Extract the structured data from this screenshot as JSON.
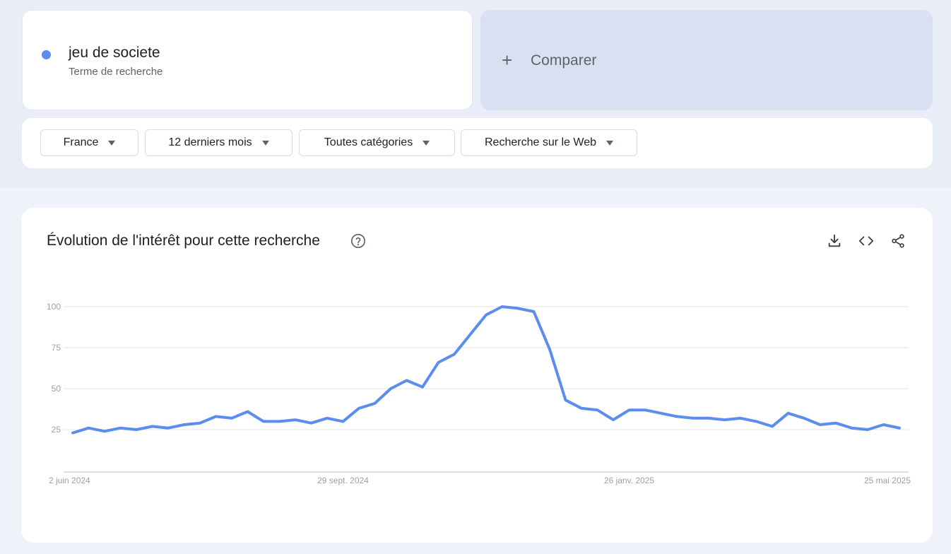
{
  "search_term": {
    "name": "jeu de societe",
    "subtitle": "Terme de recherche",
    "color": "#5b8def"
  },
  "compare": {
    "label": "Comparer",
    "plus": "+"
  },
  "filters": [
    {
      "label": "France"
    },
    {
      "label": "12 derniers mois"
    },
    {
      "label": "Toutes catégories"
    },
    {
      "label": "Recherche sur le Web"
    }
  ],
  "chart_section": {
    "title": "Évolution de l'intérêt pour cette recherche",
    "icons": [
      "help-icon",
      "download-icon",
      "embed-icon",
      "share-icon"
    ]
  },
  "chart_data": {
    "type": "line",
    "title": "",
    "xlabel": "",
    "ylabel": "",
    "ylim": [
      0,
      100
    ],
    "y_ticks": [
      25,
      50,
      75,
      100
    ],
    "x_tick_labels": [
      "2 juin 2024",
      "29 sept. 2024",
      "26 janv. 2025",
      "25 mai 2025"
    ],
    "grid": true,
    "series": [
      {
        "color": "#5b8def",
        "values": [
          23,
          26,
          24,
          26,
          25,
          27,
          26,
          28,
          29,
          33,
          32,
          36,
          30,
          30,
          31,
          29,
          32,
          30,
          38,
          41,
          50,
          55,
          51,
          66,
          71,
          83,
          95,
          100,
          99,
          97,
          74,
          43,
          38,
          37,
          31,
          37,
          37,
          35,
          33,
          32,
          32,
          31,
          32,
          30,
          27,
          35,
          32,
          28,
          29,
          26,
          25,
          28,
          26
        ]
      }
    ]
  }
}
